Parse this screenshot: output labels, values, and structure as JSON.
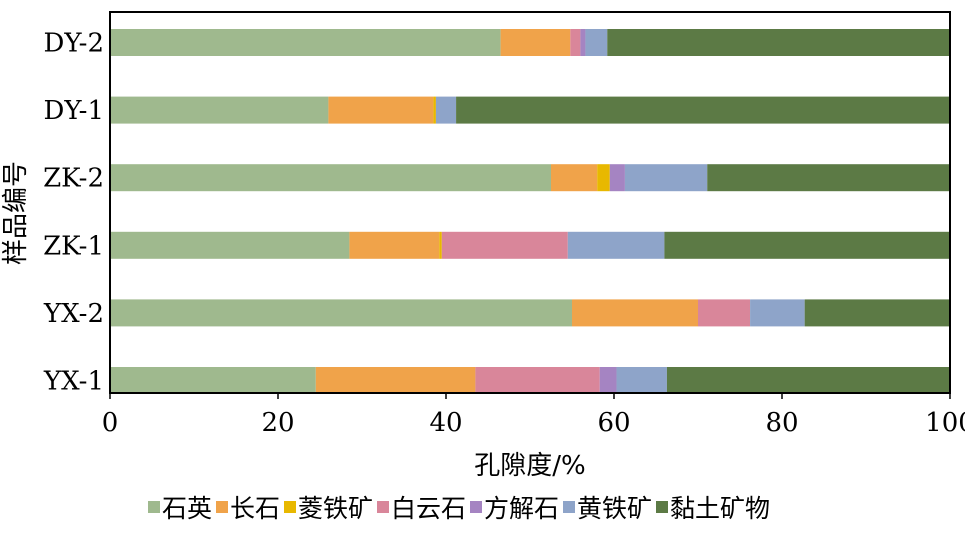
{
  "chart_data": {
    "type": "bar",
    "orientation": "horizontal",
    "stacked": true,
    "title": "",
    "xlabel": "孔隙度/%",
    "ylabel": "样品编号",
    "xlim": [
      0,
      100
    ],
    "xticks": [
      0,
      20,
      40,
      60,
      80,
      100
    ],
    "grid": false,
    "legend_position": "bottom",
    "categories": [
      "DY-2",
      "DY-1",
      "ZK-2",
      "ZK-1",
      "YX-2",
      "YX-1"
    ],
    "series": [
      {
        "name": "石英",
        "color": "#9fb98e",
        "values": [
          46.5,
          26.0,
          52.5,
          28.5,
          55.0,
          24.5
        ]
      },
      {
        "name": "长石",
        "color": "#f0a34a",
        "values": [
          8.3,
          12.5,
          5.5,
          10.7,
          15.0,
          19.0
        ]
      },
      {
        "name": "菱铁矿",
        "color": "#e8b800",
        "values": [
          0,
          0.3,
          1.5,
          0.3,
          0,
          0
        ]
      },
      {
        "name": "白云石",
        "color": "#d9869a",
        "values": [
          1.2,
          0,
          0,
          15.0,
          6.2,
          14.8
        ]
      },
      {
        "name": "方解石",
        "color": "#a584c2",
        "values": [
          0.6,
          0,
          1.8,
          0,
          0,
          2.0
        ]
      },
      {
        "name": "黄铁矿",
        "color": "#8ea4c9",
        "values": [
          2.6,
          2.4,
          9.8,
          11.5,
          6.5,
          6.0
        ]
      },
      {
        "name": "黏土矿物",
        "color": "#5c7a45",
        "values": [
          40.8,
          58.8,
          28.9,
          34.0,
          17.3,
          33.7
        ]
      }
    ]
  }
}
